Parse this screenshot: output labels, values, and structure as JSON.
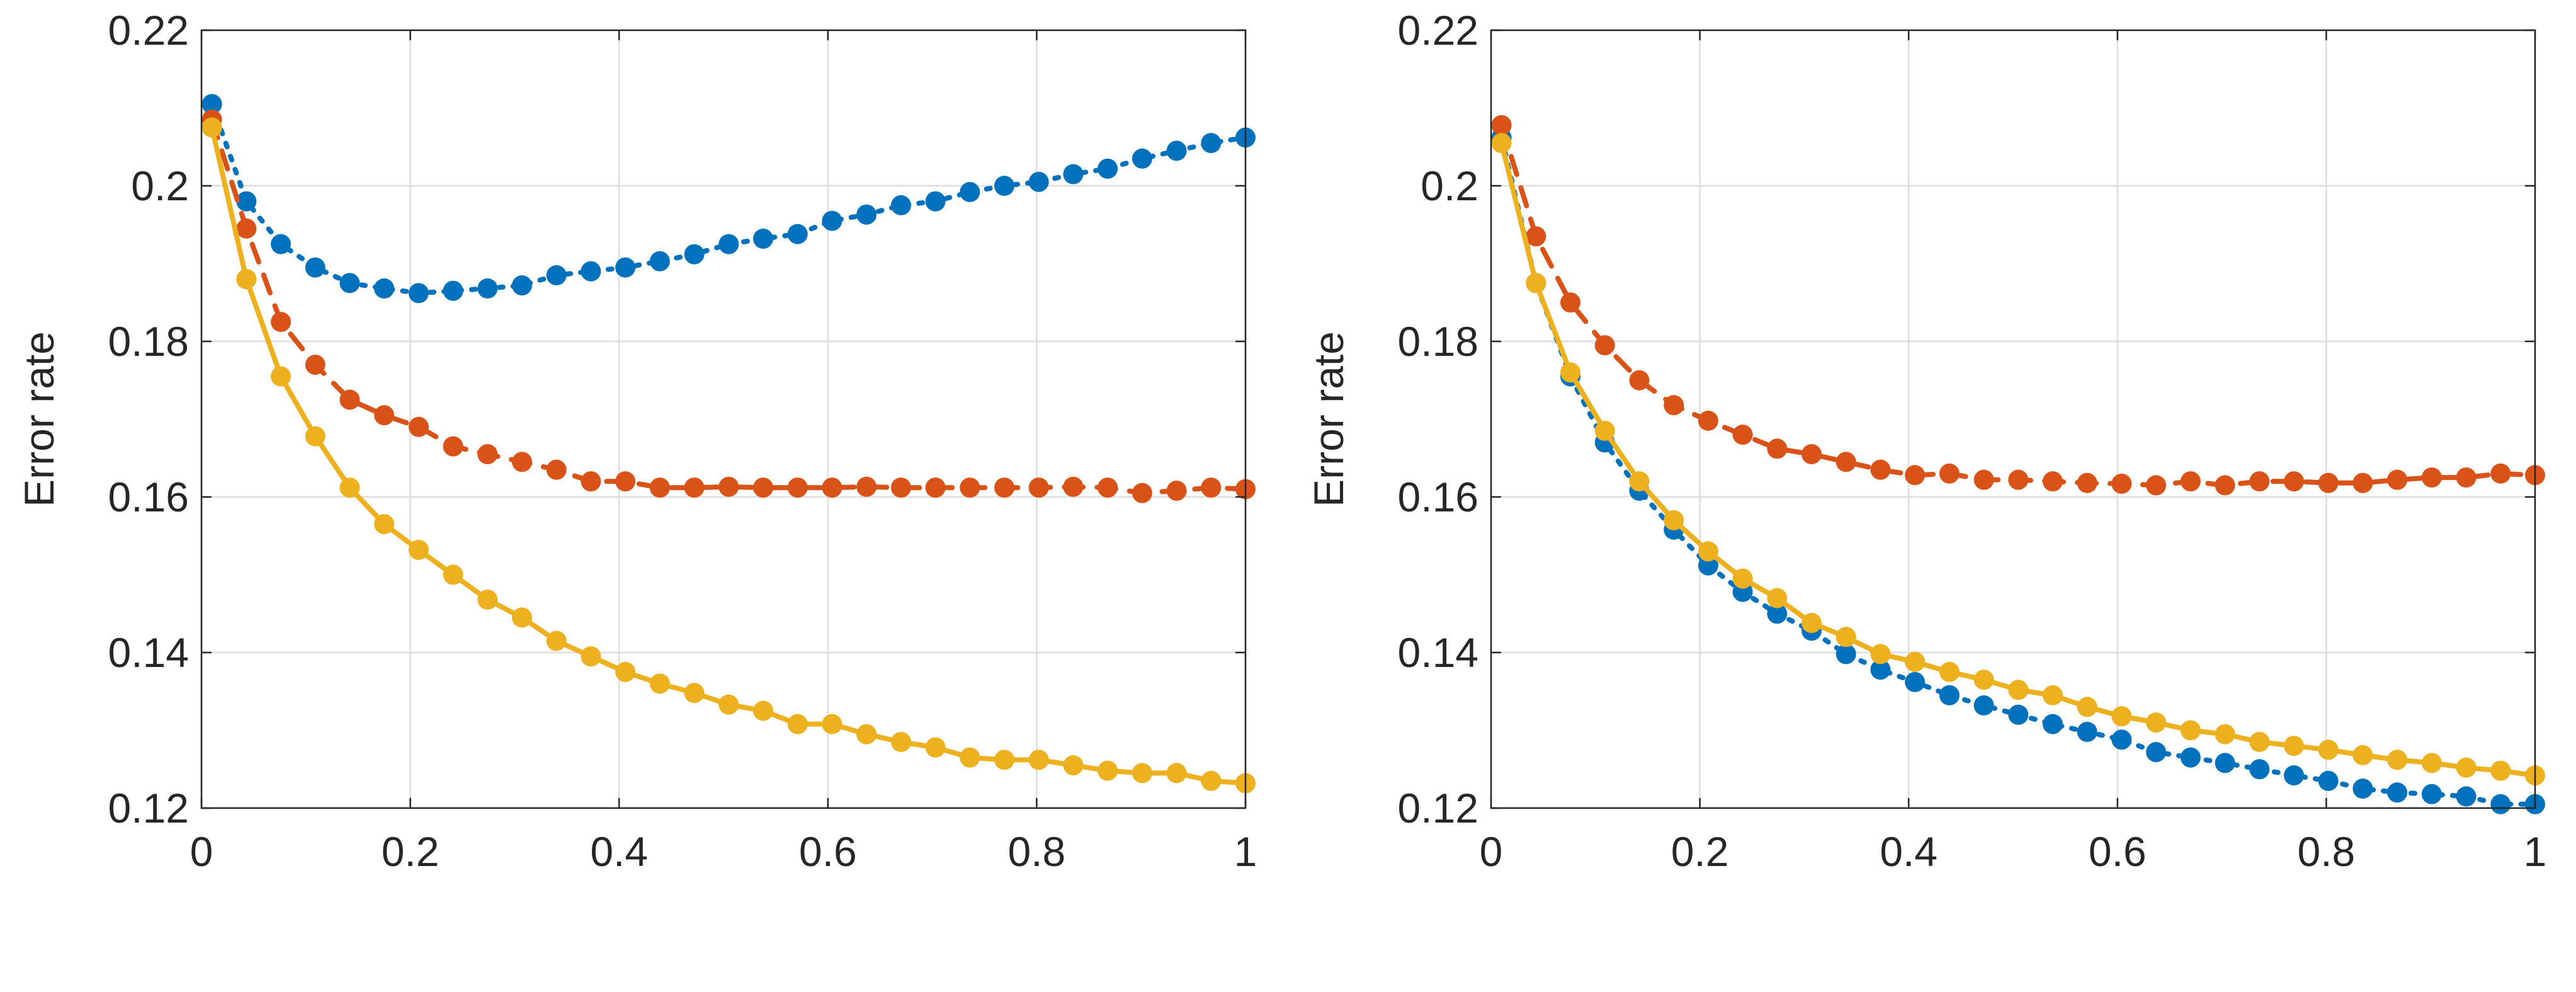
{
  "colors": {
    "blue": "#0072BD",
    "orange": "#D95319",
    "yellow": "#EDB120",
    "axis": "#262626",
    "grid": "#dedede"
  },
  "chart_data": [
    {
      "type": "line",
      "title": "",
      "xlabel": "",
      "ylabel": "Error rate",
      "xlim": [
        0,
        1
      ],
      "ylim": [
        0.12,
        0.22
      ],
      "xticks": [
        "0",
        "0.2",
        "0.4",
        "0.6",
        "0.8",
        "1"
      ],
      "yticks": [
        "0.12",
        "0.14",
        "0.16",
        "0.18",
        "0.2",
        "0.22"
      ],
      "grid": true,
      "x": [
        0.01,
        0.043,
        0.076,
        0.109,
        0.142,
        0.175,
        0.208,
        0.241,
        0.274,
        0.307,
        0.34,
        0.373,
        0.406,
        0.439,
        0.472,
        0.505,
        0.538,
        0.571,
        0.604,
        0.637,
        0.67,
        0.703,
        0.736,
        0.769,
        0.802,
        0.835,
        0.868,
        0.901,
        0.934,
        0.967,
        1.0
      ],
      "series": [
        {
          "color": "blue",
          "style": "dotted",
          "values": [
            0.2105,
            0.198,
            0.1925,
            0.1895,
            0.1875,
            0.1868,
            0.1862,
            0.1865,
            0.1868,
            0.1872,
            0.1885,
            0.189,
            0.1895,
            0.1903,
            0.1912,
            0.1925,
            0.1932,
            0.1938,
            0.1955,
            0.1963,
            0.1975,
            0.198,
            0.1992,
            0.2,
            0.2005,
            0.2015,
            0.2022,
            0.2035,
            0.2045,
            0.2055,
            0.2062
          ]
        },
        {
          "color": "orange",
          "style": "dashed",
          "values": [
            0.2085,
            0.1945,
            0.1825,
            0.177,
            0.1725,
            0.1705,
            0.169,
            0.1665,
            0.1655,
            0.1645,
            0.1635,
            0.162,
            0.162,
            0.1612,
            0.1612,
            0.1613,
            0.1612,
            0.1612,
            0.1612,
            0.1613,
            0.1612,
            0.1612,
            0.1612,
            0.1612,
            0.1612,
            0.1613,
            0.1612,
            0.1605,
            0.1608,
            0.1612,
            0.161
          ]
        },
        {
          "color": "yellow",
          "style": "solid",
          "values": [
            0.2075,
            0.188,
            0.1755,
            0.1678,
            0.1612,
            0.1565,
            0.1532,
            0.15,
            0.1468,
            0.1445,
            0.1415,
            0.1395,
            0.1375,
            0.136,
            0.1348,
            0.1333,
            0.1325,
            0.1308,
            0.1308,
            0.1295,
            0.1285,
            0.1278,
            0.1265,
            0.1262,
            0.1262,
            0.1255,
            0.1248,
            0.1245,
            0.1245,
            0.1235,
            0.1232
          ]
        }
      ]
    },
    {
      "type": "line",
      "title": "",
      "xlabel": "",
      "ylabel": "Error rate",
      "xlim": [
        0,
        1
      ],
      "ylim": [
        0.12,
        0.22
      ],
      "xticks": [
        "0",
        "0.2",
        "0.4",
        "0.6",
        "0.8",
        "1"
      ],
      "yticks": [
        "0.12",
        "0.14",
        "0.16",
        "0.18",
        "0.2",
        "0.22"
      ],
      "grid": true,
      "x": [
        0.01,
        0.043,
        0.076,
        0.109,
        0.142,
        0.175,
        0.208,
        0.241,
        0.274,
        0.307,
        0.34,
        0.373,
        0.406,
        0.439,
        0.472,
        0.505,
        0.538,
        0.571,
        0.604,
        0.637,
        0.67,
        0.703,
        0.736,
        0.769,
        0.802,
        0.835,
        0.868,
        0.901,
        0.934,
        0.967,
        1.0
      ],
      "series": [
        {
          "color": "blue",
          "style": "dotted",
          "values": [
            0.2062,
            0.1875,
            0.1755,
            0.167,
            0.1608,
            0.1558,
            0.1512,
            0.1478,
            0.145,
            0.1428,
            0.1398,
            0.1378,
            0.1362,
            0.1345,
            0.1332,
            0.132,
            0.1308,
            0.1298,
            0.1288,
            0.1272,
            0.1265,
            0.1258,
            0.125,
            0.1242,
            0.1235,
            0.1225,
            0.122,
            0.1218,
            0.1215,
            0.1205,
            0.1205
          ]
        },
        {
          "color": "orange",
          "style": "dashed",
          "values": [
            0.2078,
            0.1935,
            0.185,
            0.1795,
            0.175,
            0.1718,
            0.1698,
            0.168,
            0.1662,
            0.1655,
            0.1645,
            0.1635,
            0.1628,
            0.163,
            0.1622,
            0.1622,
            0.162,
            0.1618,
            0.1617,
            0.1615,
            0.162,
            0.1615,
            0.162,
            0.162,
            0.1618,
            0.1618,
            0.1622,
            0.1625,
            0.1625,
            0.163,
            0.1628
          ]
        },
        {
          "color": "yellow",
          "style": "solid",
          "values": [
            0.2055,
            0.1875,
            0.176,
            0.1685,
            0.162,
            0.157,
            0.153,
            0.1495,
            0.147,
            0.1438,
            0.142,
            0.1398,
            0.1388,
            0.1375,
            0.1365,
            0.1352,
            0.1345,
            0.133,
            0.1318,
            0.131,
            0.13,
            0.1295,
            0.1285,
            0.128,
            0.1275,
            0.1268,
            0.1262,
            0.1258,
            0.1252,
            0.1248,
            0.1242
          ]
        }
      ]
    }
  ]
}
